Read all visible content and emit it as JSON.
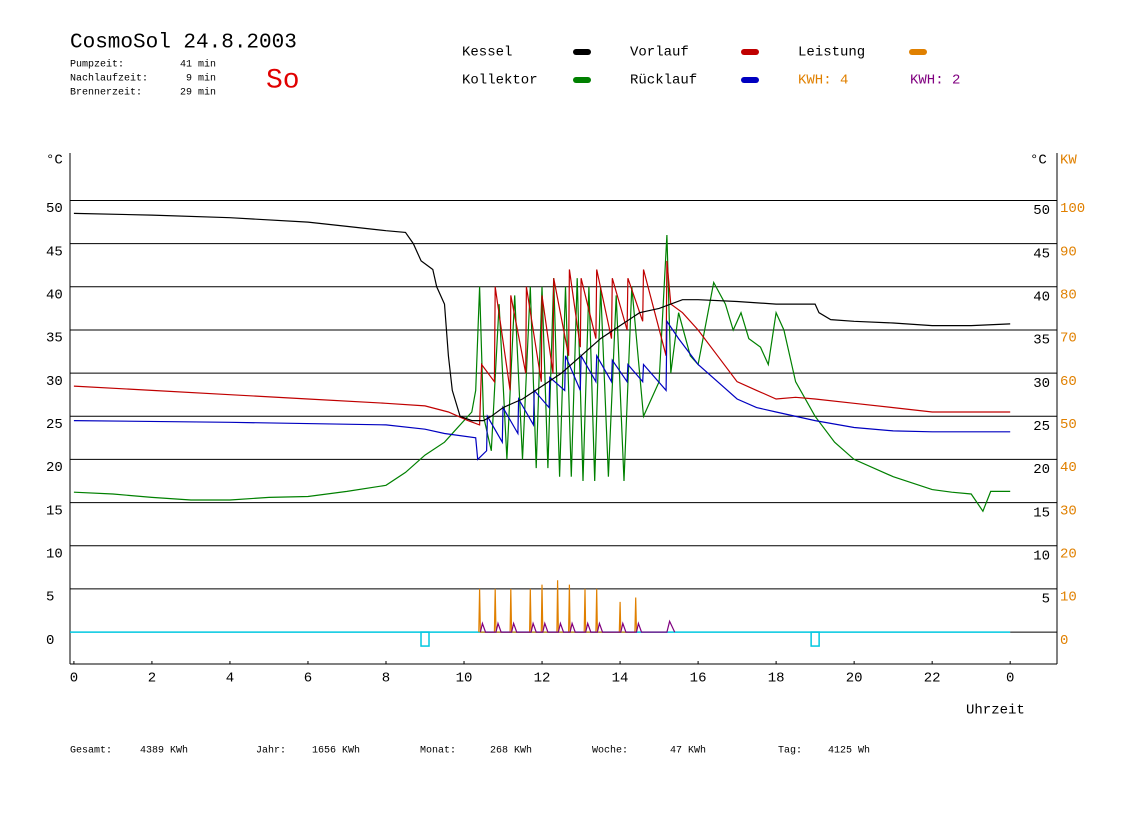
{
  "chart_data": {
    "type": "line",
    "title": "CosmoSol 24.8.2003",
    "day": "So",
    "info": [
      [
        "Pumpzeit:",
        "41 min"
      ],
      [
        "Nachlaufzeit:",
        "9 min"
      ],
      [
        "Brennerzeit:",
        "29 min"
      ]
    ],
    "kwh": [
      {
        "label": "KWH: 4",
        "color": "#e08000"
      },
      {
        "label": "KWH: 2",
        "color": "#800080"
      }
    ],
    "totals": [
      [
        "Gesamt:",
        "4389 KWh"
      ],
      [
        "Jahr:",
        "1656 KWh"
      ],
      [
        "Monat:",
        "268 KWh"
      ],
      [
        "Woche:",
        "47 KWh"
      ],
      [
        "Tag:",
        "4125 Wh"
      ]
    ],
    "ylabel": "°C",
    "y2label_c": "°C",
    "y2label": "KW",
    "xlabel": "Uhrzeit",
    "xlim": [
      -0.1,
      25.2
    ],
    "ylim": [
      -3.7,
      55.5
    ],
    "y2lim": [
      -7.4,
      111
    ],
    "xticks": [
      0,
      2,
      4,
      6,
      8,
      10,
      12,
      14,
      16,
      18,
      20,
      22,
      {
        "value": 24,
        "label": "0"
      }
    ],
    "yticks": [
      0,
      5,
      10,
      15,
      20,
      25,
      30,
      35,
      40,
      45,
      50
    ],
    "yticks_right": [
      5,
      10,
      15,
      20,
      25,
      30,
      35,
      40,
      45,
      50
    ],
    "y2ticks": [
      0,
      10,
      20,
      30,
      40,
      50,
      60,
      70,
      80,
      90,
      100
    ],
    "grid": true,
    "markers": [
      9,
      19
    ],
    "marker_color": "#00c8e0",
    "series": [
      {
        "name": "Kessel",
        "color": "#000000",
        "x": [
          0,
          2,
          4,
          6,
          7,
          8,
          8.5,
          8.7,
          8.9,
          9.2,
          9.3,
          9.5,
          9.6,
          9.7,
          9.9,
          10.2,
          10.5,
          10.7,
          11,
          11.5,
          12,
          12.5,
          13,
          13.5,
          14,
          14.5,
          15,
          15.3,
          15.6,
          16,
          17,
          18,
          19,
          19.1,
          19.4,
          20,
          21,
          22,
          23,
          24
        ],
        "values": [
          48.5,
          48.3,
          48,
          47.5,
          47,
          46.5,
          46.3,
          45,
          43,
          42,
          40,
          38,
          32,
          28,
          25,
          24.5,
          24.5,
          25,
          26,
          27,
          28.5,
          30,
          32,
          34,
          35.5,
          37,
          37.5,
          38,
          38.5,
          38.5,
          38.3,
          38,
          38,
          37,
          36.2,
          36,
          35.8,
          35.5,
          35.5,
          35.7
        ]
      },
      {
        "name": "Kollektor",
        "color": "#008000",
        "x": [
          0,
          1,
          2,
          3,
          4,
          5,
          6,
          7,
          8,
          8.5,
          9,
          9.5,
          9.8,
          10,
          10.2,
          10.3,
          10.4,
          10.5,
          10.7,
          10.9,
          11.1,
          11.3,
          11.5,
          11.7,
          11.85,
          12,
          12.15,
          12.3,
          12.45,
          12.6,
          12.75,
          12.9,
          13.05,
          13.2,
          13.35,
          13.5,
          13.7,
          13.9,
          14.1,
          14.3,
          14.6,
          15,
          15.2,
          15.3,
          15.5,
          15.8,
          16,
          16.4,
          16.7,
          16.9,
          17.1,
          17.3,
          17.6,
          17.8,
          18,
          18.2,
          18.5,
          19,
          19.5,
          20,
          21,
          22,
          22.5,
          23,
          23.3,
          23.5,
          24
        ],
        "values": [
          16.2,
          16,
          15.6,
          15.3,
          15.3,
          15.6,
          15.7,
          16.3,
          17,
          18.5,
          20.5,
          22,
          23.5,
          24.5,
          25.5,
          28,
          40,
          25,
          21,
          38,
          20,
          39,
          20,
          40,
          19,
          40,
          19,
          41,
          18,
          40,
          18,
          41,
          17.5,
          40,
          17.5,
          40,
          18,
          39,
          17.5,
          40,
          25,
          29,
          46,
          30,
          37,
          32,
          31,
          40.5,
          38,
          35,
          37,
          34,
          33,
          31,
          37,
          35,
          29,
          25,
          22,
          20,
          18,
          16.5,
          16.2,
          16,
          14,
          16.3,
          16.3
        ]
      },
      {
        "name": "Vorlauf",
        "color": "#c00000",
        "x": [
          0,
          2,
          4,
          6,
          8,
          9,
          9.6,
          10.1,
          10.4,
          10.45,
          10.78,
          10.8,
          11.18,
          11.2,
          11.58,
          11.6,
          11.98,
          12,
          12.28,
          12.3,
          12.68,
          12.7,
          12.98,
          13,
          13.38,
          13.4,
          13.78,
          13.8,
          14.18,
          14.2,
          14.58,
          14.6,
          15.18,
          15.2,
          15.3,
          15.6,
          16,
          16.5,
          17,
          17.5,
          18,
          18.5,
          19,
          20,
          21,
          22,
          24
        ],
        "values": [
          28.5,
          28,
          27.5,
          27,
          26.5,
          26.2,
          25.5,
          24.5,
          24,
          31,
          29,
          40,
          28,
          39,
          30,
          40,
          29,
          39,
          30,
          41,
          32,
          42,
          33,
          41,
          34,
          42,
          34,
          41,
          35,
          41,
          36,
          42,
          32,
          43,
          38,
          37,
          35,
          32,
          29,
          28,
          27,
          27.2,
          27,
          26.5,
          26,
          25.5,
          25.5
        ]
      },
      {
        "name": "Rücklauf",
        "color": "#0000c0",
        "x": [
          0,
          4,
          8,
          9,
          9.5,
          10.3,
          10.35,
          10.58,
          10.6,
          10.98,
          11,
          11.38,
          11.4,
          11.78,
          11.8,
          12.18,
          12.2,
          12.58,
          12.6,
          12.98,
          13,
          13.38,
          13.4,
          13.78,
          13.8,
          14.18,
          14.2,
          14.58,
          14.6,
          15.18,
          15.2,
          15.5,
          16,
          16.5,
          17,
          17.5,
          18,
          19,
          20,
          21,
          22,
          24
        ],
        "values": [
          24.5,
          24.3,
          24,
          23.5,
          23,
          22.5,
          20,
          21,
          25,
          22,
          26,
          23,
          27,
          24,
          28,
          26,
          29.5,
          28,
          32,
          28,
          32,
          29,
          32,
          29,
          31.5,
          29,
          31,
          29,
          31,
          28,
          36,
          34,
          31,
          29,
          27,
          26,
          25.5,
          24.5,
          23.7,
          23.3,
          23.2,
          23.2
        ]
      },
      {
        "name": "Leistung",
        "color": "#e08000",
        "axis": "y2",
        "x": [
          10.38,
          10.4,
          10.42,
          10.78,
          10.8,
          10.82,
          11.18,
          11.2,
          11.22,
          11.68,
          11.7,
          11.72,
          11.98,
          12,
          12.02,
          12.38,
          12.4,
          12.42,
          12.68,
          12.7,
          12.72,
          13.08,
          13.1,
          13.12,
          13.38,
          13.4,
          13.42,
          13.98,
          14,
          14.02,
          14.38,
          14.4,
          14.42
        ],
        "values": [
          0,
          10,
          0,
          0,
          10,
          0,
          0,
          10,
          0,
          0,
          10,
          0,
          0,
          11,
          0,
          0,
          12,
          0,
          0,
          11,
          0,
          0,
          10,
          0,
          0,
          10,
          0,
          0,
          7,
          0,
          0,
          8,
          0
        ]
      },
      {
        "color": "#800080",
        "axis": "y2",
        "x": [
          10.42,
          10.47,
          10.55,
          10.82,
          10.87,
          10.95,
          11.22,
          11.27,
          11.35,
          11.72,
          11.77,
          11.85,
          12.02,
          12.07,
          12.15,
          12.42,
          12.47,
          12.55,
          12.72,
          12.77,
          12.85,
          13.12,
          13.17,
          13.25,
          13.42,
          13.47,
          13.55,
          14.02,
          14.07,
          14.15,
          14.42,
          14.47,
          14.55,
          15.2,
          15.27,
          15.4
        ],
        "values": [
          0,
          2,
          0,
          0,
          2,
          0,
          0,
          2,
          0,
          0,
          2,
          0,
          0,
          2,
          0,
          0,
          2,
          0,
          0,
          2,
          0,
          0,
          2,
          0,
          0,
          2,
          0,
          0,
          2,
          0,
          0,
          2,
          0,
          0,
          2.5,
          0
        ]
      }
    ]
  }
}
